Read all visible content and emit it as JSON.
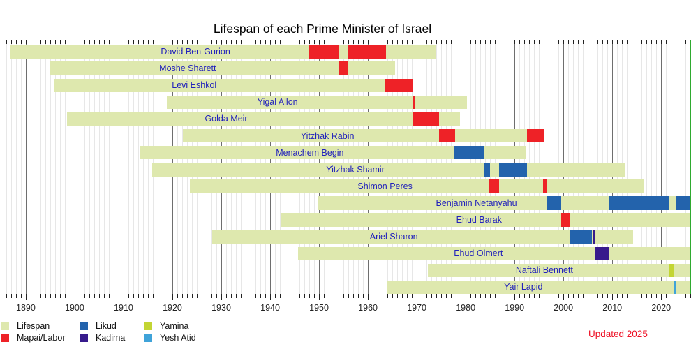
{
  "chart_data": {
    "type": "bar",
    "variant": "horizontal-lifespan-timeline",
    "title": "Lifespan of each Prime Minister of Israel",
    "updated_note": "Updated 2025",
    "x_axis": {
      "min_year": 1885.3,
      "max_year": 2026.6,
      "tick_interval_years": 1,
      "decade_labels": [
        "1890",
        "1900",
        "1910",
        "1920",
        "1930",
        "1940",
        "1950",
        "1960",
        "1970",
        "1980",
        "1990",
        "2000",
        "2010",
        "2020"
      ],
      "now_marker_year": 2025.9,
      "grid": true
    },
    "legend": [
      {
        "label": "Lifespan",
        "color_key": "lifespan"
      },
      {
        "label": "Mapai/Labor",
        "color_key": "mapai_labor"
      },
      {
        "label": "Likud",
        "color_key": "likud"
      },
      {
        "label": "Kadima",
        "color_key": "kadima"
      },
      {
        "label": "Yamina",
        "color_key": "yamina"
      },
      {
        "label": "Yesh Atid",
        "color_key": "yesh_atid"
      }
    ],
    "colors": {
      "lifespan": "#dee8ae",
      "mapai_labor": "#ee2227",
      "likud": "#2363ac",
      "kadima": "#371b8c",
      "yamina": "#c3d534",
      "yesh_atid": "#3fa3d9",
      "now_line": "#2faa2f",
      "pm_name_text": "#2222bb",
      "grid_year": "#e7e7e7",
      "grid_decade": "#6e6e6e",
      "axis_text": "#222222",
      "updated_text": "#ee1126"
    },
    "prime_ministers": [
      {
        "name": "David Ben-Gurion",
        "birth": 1886.8,
        "death": 1974.0,
        "terms": [
          {
            "party": "mapai_labor",
            "start": 1948.0,
            "end": 1954.1
          },
          {
            "party": "mapai_labor",
            "start": 1955.8,
            "end": 1963.7
          }
        ]
      },
      {
        "name": "Moshe Sharett",
        "birth": 1894.8,
        "death": 1965.6,
        "terms": [
          {
            "party": "mapai_labor",
            "start": 1954.1,
            "end": 1955.8
          }
        ]
      },
      {
        "name": "Levi Eshkol",
        "birth": 1895.8,
        "death": 1969.3,
        "terms": [
          {
            "party": "mapai_labor",
            "start": 1963.4,
            "end": 1969.3
          }
        ]
      },
      {
        "name": "Yigal Allon",
        "birth": 1918.8,
        "death": 1980.2,
        "terms": [
          {
            "party": "mapai_labor",
            "start": 1969.2,
            "end": 1969.5
          }
        ]
      },
      {
        "name": "Golda Meir",
        "birth": 1898.4,
        "death": 1978.9,
        "terms": [
          {
            "party": "mapai_labor",
            "start": 1969.3,
            "end": 1974.6
          }
        ]
      },
      {
        "name": "Yitzhak Rabin",
        "birth": 1922.2,
        "death": 1996.0,
        "terms": [
          {
            "party": "mapai_labor",
            "start": 1974.5,
            "end": 1977.9
          },
          {
            "party": "mapai_labor",
            "start": 1992.5,
            "end": 1996.0
          }
        ]
      },
      {
        "name": "Menachem Begin",
        "birth": 1913.4,
        "death": 1992.3,
        "terms": [
          {
            "party": "likud",
            "start": 1977.5,
            "end": 1983.9
          }
        ]
      },
      {
        "name": "Yitzhak Shamir",
        "birth": 1915.8,
        "death": 2012.6,
        "terms": [
          {
            "party": "likud",
            "start": 1983.9,
            "end": 1985.0
          },
          {
            "party": "likud",
            "start": 1986.9,
            "end": 1992.5
          }
        ]
      },
      {
        "name": "Shimon Peres",
        "birth": 1923.6,
        "death": 2016.4,
        "terms": [
          {
            "party": "mapai_labor",
            "start": 1984.9,
            "end": 1986.9
          },
          {
            "party": "mapai_labor",
            "start": 1995.9,
            "end": 1996.5
          }
        ]
      },
      {
        "name": "Benjamin Netanyahu",
        "birth": 1949.9,
        "death": null,
        "terms": [
          {
            "party": "likud",
            "start": 1996.5,
            "end": 1999.6
          },
          {
            "party": "likud",
            "start": 2009.3,
            "end": 2021.5
          },
          {
            "party": "likud",
            "start": 2023.0,
            "end": 2025.9
          }
        ]
      },
      {
        "name": "Ehud Barak",
        "birth": 1942.1,
        "death": null,
        "terms": [
          {
            "party": "mapai_labor",
            "start": 1999.6,
            "end": 2001.3
          }
        ]
      },
      {
        "name": "Ariel Sharon",
        "birth": 1928.1,
        "death": 2014.2,
        "terms": [
          {
            "party": "likud",
            "start": 2001.3,
            "end": 2005.9
          },
          {
            "party": "kadima",
            "start": 2005.9,
            "end": 2006.4
          }
        ]
      },
      {
        "name": "Ehud Olmert",
        "birth": 1945.7,
        "death": null,
        "terms": [
          {
            "party": "kadima",
            "start": 2006.4,
            "end": 2009.3
          }
        ]
      },
      {
        "name": "Naftali Bennett",
        "birth": 1972.2,
        "death": null,
        "terms": [
          {
            "party": "yamina",
            "start": 2021.5,
            "end": 2022.6
          }
        ]
      },
      {
        "name": "Yair Lapid",
        "birth": 1963.9,
        "death": null,
        "terms": [
          {
            "party": "yesh_atid",
            "start": 2022.5,
            "end": 2023.0
          }
        ]
      }
    ]
  }
}
